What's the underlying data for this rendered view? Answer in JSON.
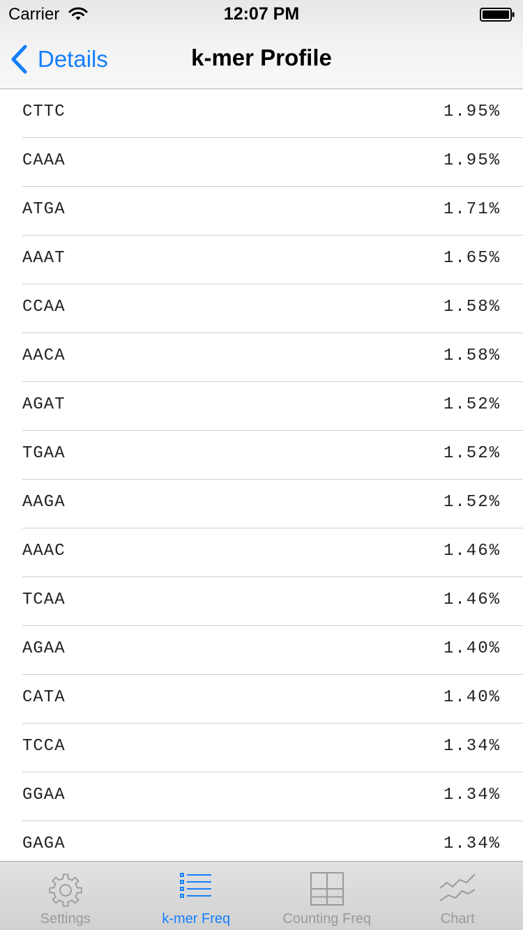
{
  "status_bar": {
    "carrier": "Carrier",
    "time": "12:07 PM"
  },
  "nav": {
    "back_label": "Details",
    "title": "k-mer Profile"
  },
  "rows": [
    {
      "kmer": "CTTC",
      "pct": "1.95%"
    },
    {
      "kmer": "CAAA",
      "pct": "1.95%"
    },
    {
      "kmer": "ATGA",
      "pct": "1.71%"
    },
    {
      "kmer": "AAAT",
      "pct": "1.65%"
    },
    {
      "kmer": "CCAA",
      "pct": "1.58%"
    },
    {
      "kmer": "AACA",
      "pct": "1.58%"
    },
    {
      "kmer": "AGAT",
      "pct": "1.52%"
    },
    {
      "kmer": "TGAA",
      "pct": "1.52%"
    },
    {
      "kmer": "AAGA",
      "pct": "1.52%"
    },
    {
      "kmer": "AAAC",
      "pct": "1.46%"
    },
    {
      "kmer": "TCAA",
      "pct": "1.46%"
    },
    {
      "kmer": "AGAA",
      "pct": "1.40%"
    },
    {
      "kmer": "CATA",
      "pct": "1.40%"
    },
    {
      "kmer": "TCCA",
      "pct": "1.34%"
    },
    {
      "kmer": "GGAA",
      "pct": "1.34%"
    },
    {
      "kmer": "GAGA",
      "pct": "1.34%"
    }
  ],
  "tabs": [
    {
      "label": "Settings",
      "icon": "gear-icon",
      "active": false
    },
    {
      "label": "k-mer Freq",
      "icon": "list-icon",
      "active": true
    },
    {
      "label": "Counting Freq",
      "icon": "grid-icon",
      "active": false
    },
    {
      "label": "Chart",
      "icon": "chart-icon",
      "active": false
    }
  ],
  "colors": {
    "accent": "#157efb",
    "inactive": "#9a9a9a"
  }
}
